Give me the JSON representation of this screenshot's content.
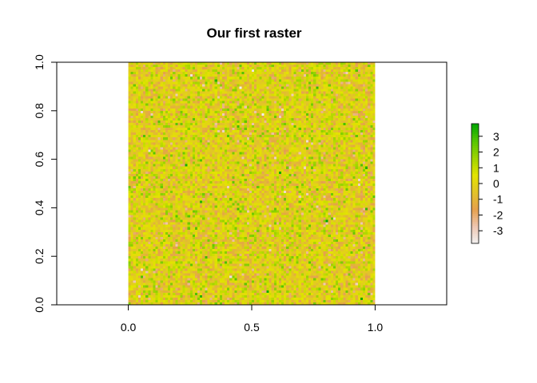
{
  "chart_data": {
    "type": "heatmap",
    "title": "Our first raster",
    "xlabel": "",
    "ylabel": "",
    "xlim": [
      -0.29,
      1.29
    ],
    "ylim": [
      0,
      1
    ],
    "raster_extent": {
      "x": [
        0,
        1
      ],
      "y": [
        0,
        1
      ]
    },
    "raster_dims": {
      "ncol": 100,
      "nrow": 100
    },
    "value_distribution": "standard normal random values",
    "value_range": [
      -3.8,
      3.8
    ],
    "x_ticks": [
      "0.0",
      "0.5",
      "1.0"
    ],
    "y_ticks": [
      "0.0",
      "0.2",
      "0.4",
      "0.6",
      "0.8",
      "1.0"
    ],
    "legend": {
      "placement": "right",
      "ticks": [
        "3",
        "2",
        "1",
        "0",
        "-1",
        "-2",
        "-3"
      ],
      "tick_values": [
        3,
        2,
        1,
        0,
        -1,
        -2,
        -3
      ],
      "range": [
        -3.8,
        3.8
      ],
      "color_stops": [
        "#f2f2f2",
        "#eec6b1",
        "#e5a04c",
        "#e2c32a",
        "#e3e300",
        "#9ed400",
        "#56c500",
        "#00a600"
      ]
    },
    "grid": false
  }
}
